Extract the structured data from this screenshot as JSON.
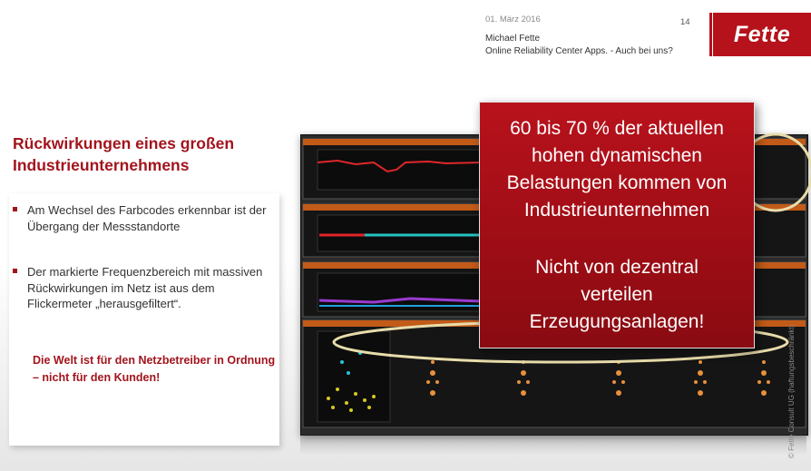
{
  "header": {
    "date": "01. März 2016",
    "slide_number": "14",
    "author": "Michael Fette",
    "subtitle": "Online Reliability Center Apps. - Auch bei uns?",
    "logo_text": "Fette"
  },
  "slide": {
    "title_line1": "Rückwirkungen eines großen",
    "title_line2": "Industrieunternehmens",
    "bullets": [
      "Am Wechsel des Farbcodes erkennbar ist der Übergang der Messstandorte",
      "Der markierte Frequenzbereich mit massiven Rückwirkungen im Netz ist aus dem Flickermeter „herausgefiltert“."
    ],
    "emphasis": "Die Welt ist für den Netzbetreiber in Ordnung – nicht für den Kunden!"
  },
  "callout": {
    "line1": "60 bis 70 % der aktuellen",
    "line2": "hohen dynamischen",
    "line3": "Belastungen kommen von",
    "line4": "Industrieunternehmen",
    "line5": "Nicht von dezentral",
    "line6": "verteilen",
    "line7": "Erzeugungsanlagen!"
  },
  "copyright": "© Fette Consult UG (haftungsbeschränkt)",
  "colors": {
    "accent": "#a3141d",
    "callout_bg": "#a5101a",
    "highlight_ellipse": "#e8dcaa"
  }
}
